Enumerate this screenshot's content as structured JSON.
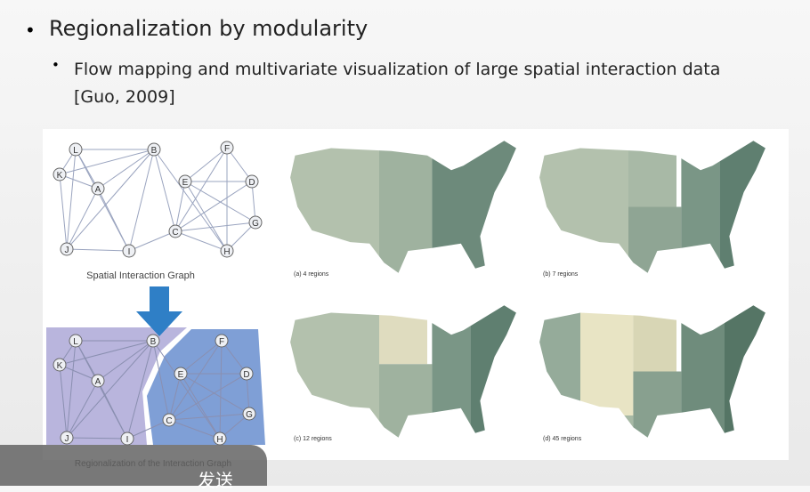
{
  "bullets": [
    {
      "text": "Regionalization by modularity",
      "sub": [
        {
          "text": "Flow mapping and multivariate visualization of large spatial interaction data [Guo, 2009]"
        }
      ]
    }
  ],
  "figure": {
    "graph_nodes": [
      "L",
      "B",
      "F",
      "K",
      "A",
      "E",
      "D",
      "G",
      "C",
      "J",
      "I",
      "H"
    ],
    "graph_caption": "Spatial Interaction Graph",
    "regionalized_caption": "Regionalization of the Interaction Graph",
    "maps": [
      {
        "caption": "(a) 4 regions"
      },
      {
        "caption": "(b) 7 regions"
      },
      {
        "caption": "(c) 12 regions"
      },
      {
        "caption": "(d) 45 regions"
      }
    ]
  },
  "overlay_button": "发送"
}
